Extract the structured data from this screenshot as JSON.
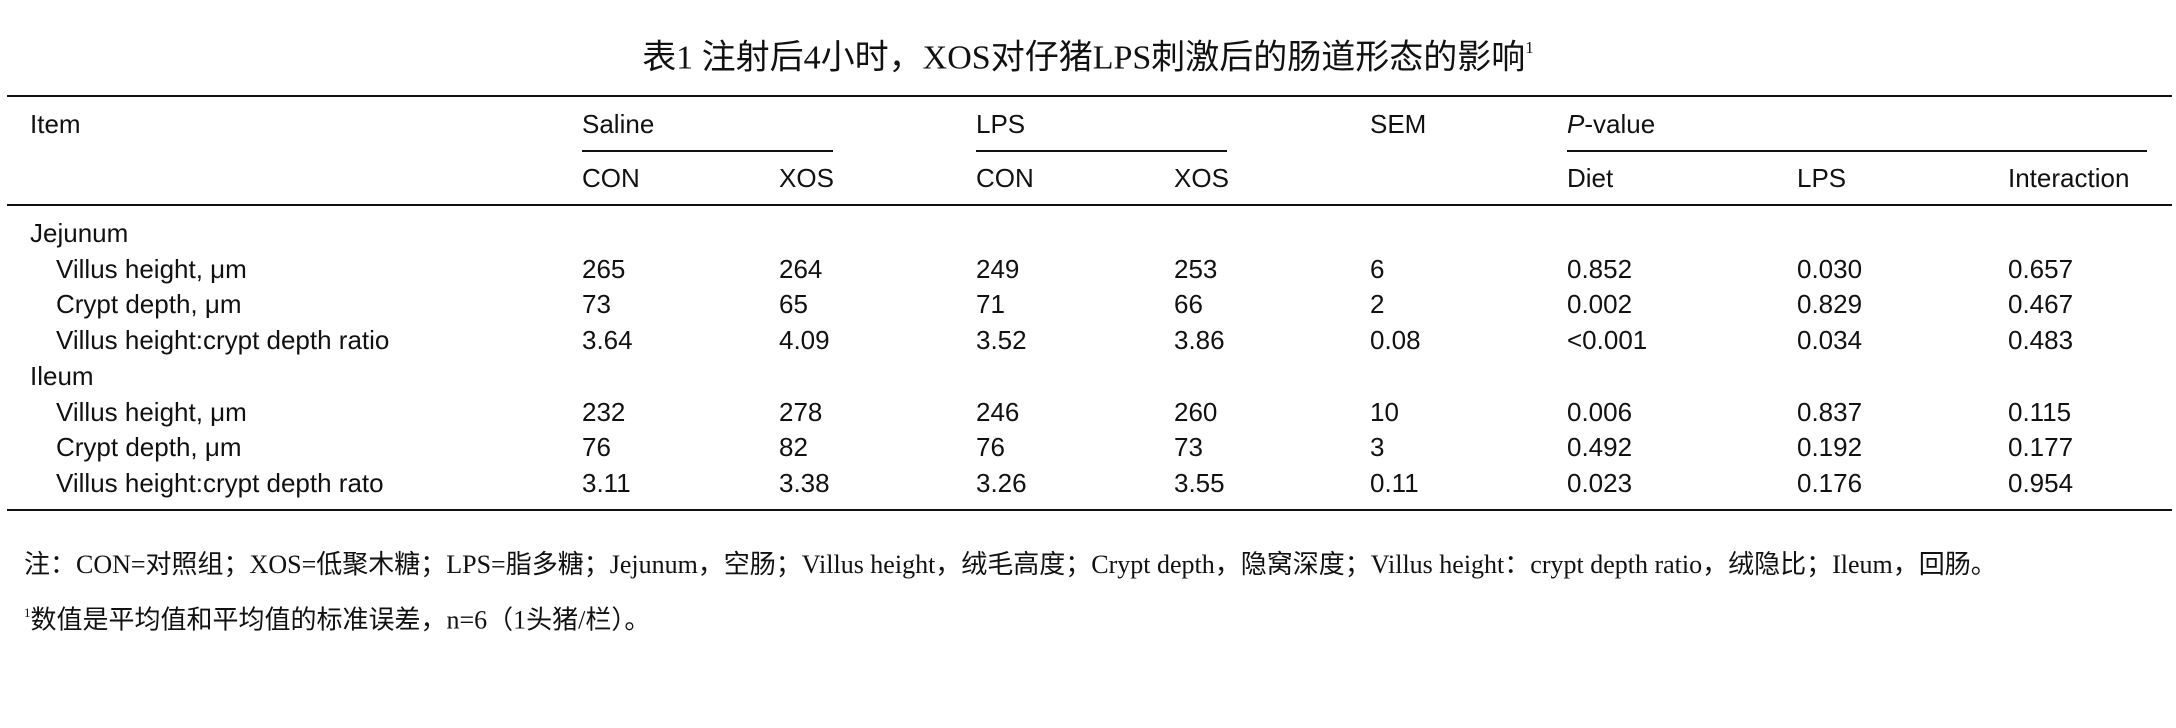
{
  "title": {
    "text": "表1 注射后4小时，XOS对仔猪LPS刺激后的肠道形态的影响",
    "sup": "1"
  },
  "table": {
    "header": {
      "item": "Item",
      "groups": [
        "Saline",
        "LPS"
      ],
      "sem": "SEM",
      "pvalue": {
        "italic": "P",
        "rest": "-value"
      },
      "sub": [
        "CON",
        "XOS",
        "CON",
        "XOS",
        "Diet",
        "LPS",
        "Interaction"
      ]
    },
    "sections": [
      {
        "name": "Jejunum",
        "rows": [
          [
            "Villus height, μm",
            "265",
            "264",
            "249",
            "253",
            "6",
            "0.852",
            "0.030",
            "0.657"
          ],
          [
            "Crypt depth, μm",
            "73",
            "65",
            "71",
            "66",
            "2",
            "0.002",
            "0.829",
            "0.467"
          ],
          [
            "Villus height:crypt depth ratio",
            "3.64",
            "4.09",
            "3.52",
            "3.86",
            "0.08",
            "<0.001",
            "0.034",
            "0.483"
          ]
        ]
      },
      {
        "name": "Ileum",
        "rows": [
          [
            "Villus height, μm",
            "232",
            "278",
            "246",
            "260",
            "10",
            "0.006",
            "0.837",
            "0.115"
          ],
          [
            "Crypt depth, μm",
            "76",
            "82",
            "76",
            "73",
            "3",
            "0.492",
            "0.192",
            "0.177"
          ],
          [
            "Villus height:crypt depth rato",
            "3.11",
            "3.38",
            "3.26",
            "3.55",
            "0.11",
            "0.023",
            "0.176",
            "0.954"
          ]
        ]
      }
    ]
  },
  "notes": {
    "abbreviations": "注：CON=对照组；XOS=低聚木糖；LPS=脂多糖；Jejunum，空肠；Villus height，绒毛高度；Crypt depth，隐窝深度；Villus height：crypt depth ratio，绒隐比；Ileum，回肠。",
    "footnote": {
      "mark": "1",
      "text": "数值是平均值和平均值的标准误差，n=6（1头猪/栏）。"
    }
  }
}
